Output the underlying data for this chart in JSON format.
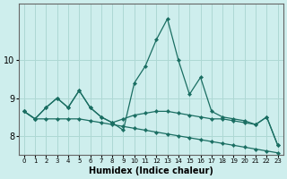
{
  "xlabel": "Humidex (Indice chaleur)",
  "background_color": "#ceeeed",
  "grid_color": "#aed8d4",
  "line_color": "#1a6e62",
  "x_values": [
    0,
    1,
    2,
    3,
    4,
    5,
    6,
    7,
    8,
    9,
    10,
    11,
    12,
    13,
    14,
    15,
    16,
    17,
    18,
    19,
    20,
    21,
    22,
    23
  ],
  "line1": [
    8.65,
    8.45,
    8.75,
    9.0,
    8.75,
    9.2,
    8.75,
    8.5,
    8.35,
    8.45,
    8.55,
    8.6,
    8.65,
    8.65,
    8.6,
    8.55,
    8.5,
    8.45,
    8.45,
    8.4,
    8.35,
    8.3,
    8.5,
    7.75
  ],
  "line2": [
    8.65,
    8.45,
    8.75,
    9.0,
    8.75,
    9.2,
    8.75,
    8.5,
    8.35,
    8.15,
    9.4,
    9.85,
    10.55,
    11.1,
    10.0,
    9.1,
    9.55,
    8.65,
    8.5,
    8.45,
    8.4,
    8.3,
    8.5,
    7.75
  ],
  "line3": [
    8.65,
    8.45,
    8.45,
    8.45,
    8.45,
    8.45,
    8.4,
    8.35,
    8.3,
    8.25,
    8.2,
    8.15,
    8.1,
    8.05,
    8.0,
    7.95,
    7.9,
    7.85,
    7.8,
    7.75,
    7.7,
    7.65,
    7.6,
    7.55
  ],
  "ylim": [
    7.5,
    11.5
  ],
  "yticks": [
    8,
    9,
    10
  ],
  "xlim": [
    -0.5,
    23.5
  ]
}
